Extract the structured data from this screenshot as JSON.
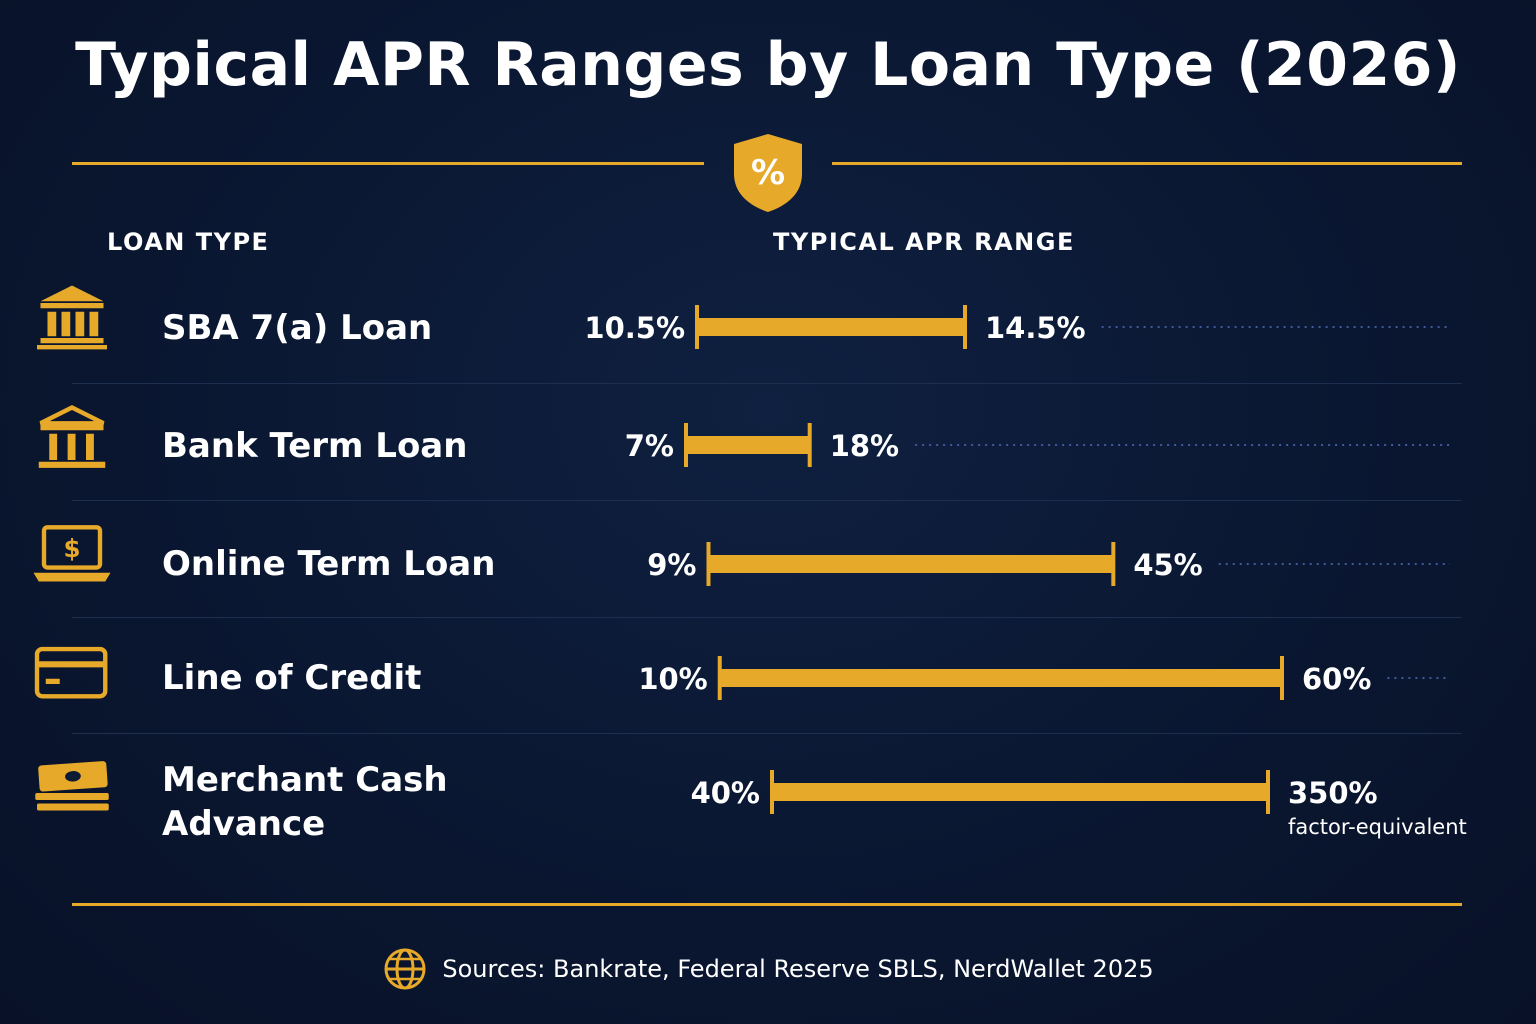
{
  "title": "Typical APR Ranges by Loan Type (2026)",
  "header_icon": "percent-shield-icon",
  "header_icon_text": "%",
  "columns": {
    "loan_type": "LOAN TYPE",
    "apr_range": "TYPICAL APR RANGE"
  },
  "colors": {
    "accent": "#e6a92a",
    "background": "#0c1a33",
    "text": "#ffffff"
  },
  "footer": {
    "icon": "globe-icon",
    "text": "Sources: Bankrate, Federal Reserve SBLS, NerdWallet 2025"
  },
  "chart_data": {
    "type": "bar",
    "orientation": "horizontal",
    "title": "Typical APR Ranges by Loan Type (2026)",
    "categories": [
      "SBA 7(a) Loan",
      "Bank Term Loan",
      "Online Term Loan",
      "Line of Credit",
      "Merchant Cash Advance"
    ],
    "series": [
      {
        "ranges": [
          {
            "low": 10.5,
            "high": 14.5,
            "low_label": "10.5%",
            "high_label": "14.5%",
            "note": ""
          },
          {
            "low": 7,
            "high": 18,
            "low_label": "7%",
            "high_label": "18%",
            "note": ""
          },
          {
            "low": 9,
            "high": 45,
            "low_label": "9%",
            "high_label": "45%",
            "note": ""
          },
          {
            "low": 10,
            "high": 60,
            "low_label": "10%",
            "high_label": "60%",
            "note": ""
          },
          {
            "low": 40,
            "high": 350,
            "low_label": "40%",
            "high_label": "350%",
            "note": "factor-equivalent"
          }
        ]
      }
    ],
    "icons": [
      "bank-icon",
      "bank-icon",
      "laptop-dollar-icon",
      "credit-card-icon",
      "cash-stack-icon"
    ]
  }
}
